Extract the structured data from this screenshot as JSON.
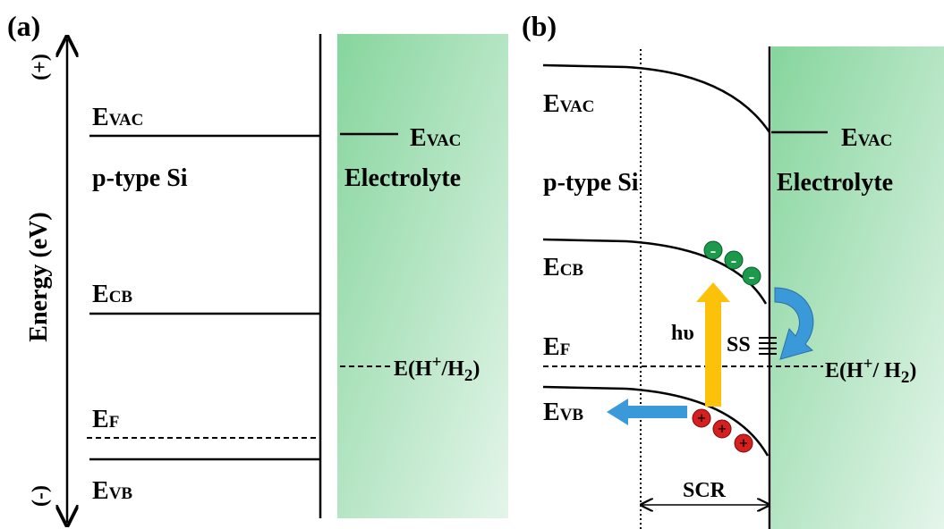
{
  "panel_a": {
    "label": "(a)",
    "axis": {
      "top": "(+)",
      "bottom": "(-)",
      "title": "Energy (eV)"
    },
    "semiconductor": "p-type Si",
    "electrolyte": "Electrolyte",
    "levels": {
      "vac": {
        "base": "E",
        "sub": "VAC"
      },
      "cb": {
        "base": "E",
        "sub": "CB"
      },
      "f": {
        "base": "E",
        "sub": "F"
      },
      "vb": {
        "base": "E",
        "sub": "VB"
      },
      "electrolyte_vac": {
        "base": "E",
        "sub": "VAC"
      }
    },
    "redox": {
      "pre": "E(H",
      "sup": "+",
      "mid": "/H",
      "sub": "2",
      "post": ")"
    }
  },
  "panel_b": {
    "label": "(b)",
    "semiconductor": "p-type Si",
    "electrolyte": "Electrolyte",
    "levels": {
      "vac": {
        "base": "E",
        "sub": "VAC"
      },
      "cb": {
        "base": "E",
        "sub": "CB"
      },
      "f": {
        "base": "E",
        "sub": "F"
      },
      "vb": {
        "base": "E",
        "sub": "VB"
      },
      "electrolyte_vac": {
        "base": "E",
        "sub": "VAC"
      }
    },
    "redox": {
      "pre": "E(H",
      "sup": "+",
      "mid": "/ H",
      "sub": "2",
      "post": ")"
    },
    "photon": "hυ",
    "surface_states": "SS",
    "scr": "SCR",
    "electron_sign": "-",
    "hole_sign": "+"
  }
}
